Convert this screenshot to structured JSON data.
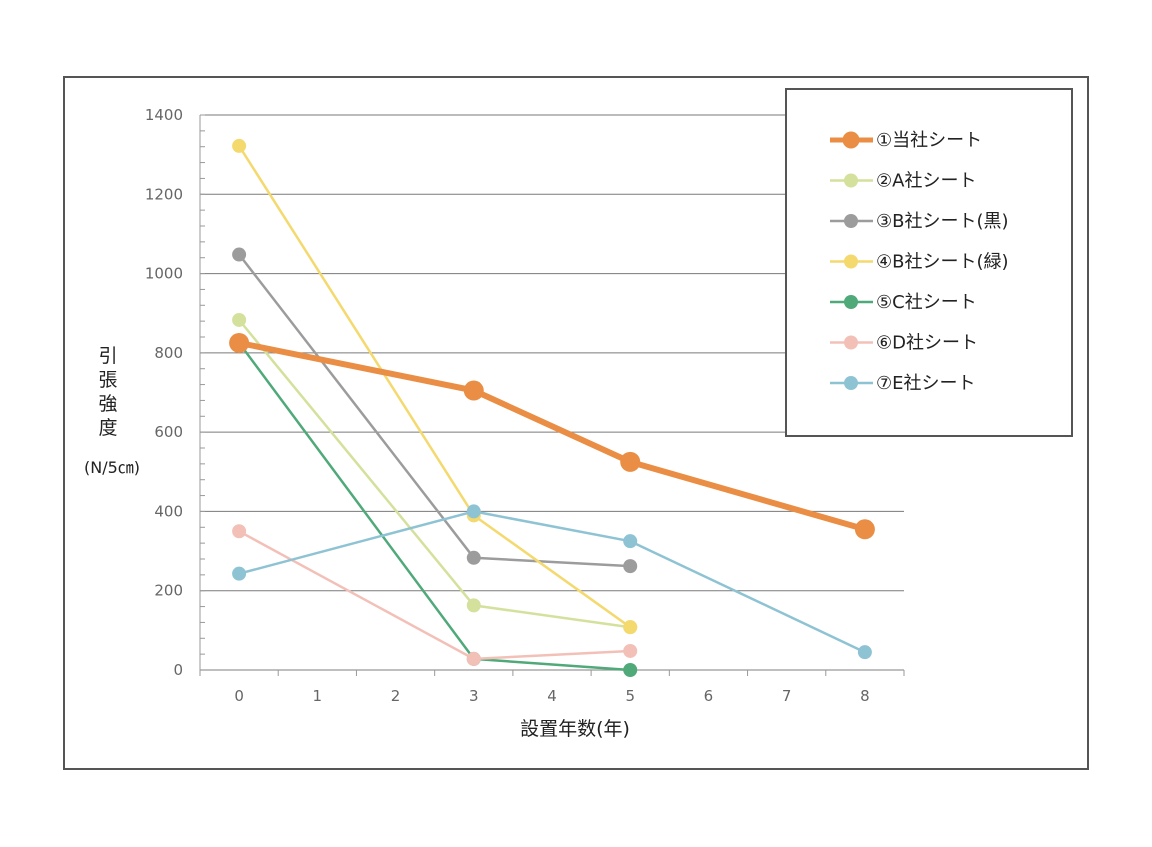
{
  "chart_data": {
    "type": "line",
    "xlabel": "設置年数(年)",
    "ylabel_lines": [
      "引",
      "張",
      "強",
      "度"
    ],
    "ylabel_unit": "(N/5㎝)",
    "x_ticks": [
      0,
      1,
      2,
      3,
      4,
      5,
      6,
      7,
      8
    ],
    "y_ticks": [
      0,
      200,
      400,
      600,
      800,
      1000,
      1200,
      1400
    ],
    "xlim": [
      -0.5,
      8.5
    ],
    "ylim": [
      0,
      1400
    ],
    "grid": "horizontal",
    "legend_position": "top-right",
    "series": [
      {
        "name": "①当社シート",
        "color": "#E98E44",
        "emphasis": true,
        "points": [
          [
            0,
            825
          ],
          [
            3,
            705
          ],
          [
            5,
            525
          ],
          [
            8,
            355
          ]
        ]
      },
      {
        "name": "②A社シート",
        "color": "#D3E19C",
        "points": [
          [
            0,
            883
          ],
          [
            3,
            163
          ],
          [
            5,
            108
          ]
        ]
      },
      {
        "name": "③B社シート(黒)",
        "color": "#9C9C9C",
        "points": [
          [
            0,
            1048
          ],
          [
            3,
            283
          ],
          [
            5,
            262
          ]
        ]
      },
      {
        "name": "④B社シート(緑)",
        "color": "#F4D96F",
        "points": [
          [
            0,
            1322
          ],
          [
            3,
            390
          ],
          [
            5,
            108
          ]
        ]
      },
      {
        "name": "⑤C社シート",
        "color": "#4FA979",
        "points": [
          [
            0,
            825
          ],
          [
            3,
            28
          ],
          [
            5,
            0
          ]
        ]
      },
      {
        "name": "⑥D社シート",
        "color": "#F3C0B8",
        "points": [
          [
            0,
            350
          ],
          [
            3,
            28
          ],
          [
            5,
            48
          ]
        ]
      },
      {
        "name": "⑦E社シート",
        "color": "#8EC3D4",
        "points": [
          [
            0,
            243
          ],
          [
            3,
            400
          ],
          [
            5,
            325
          ],
          [
            8,
            45
          ]
        ]
      }
    ]
  }
}
